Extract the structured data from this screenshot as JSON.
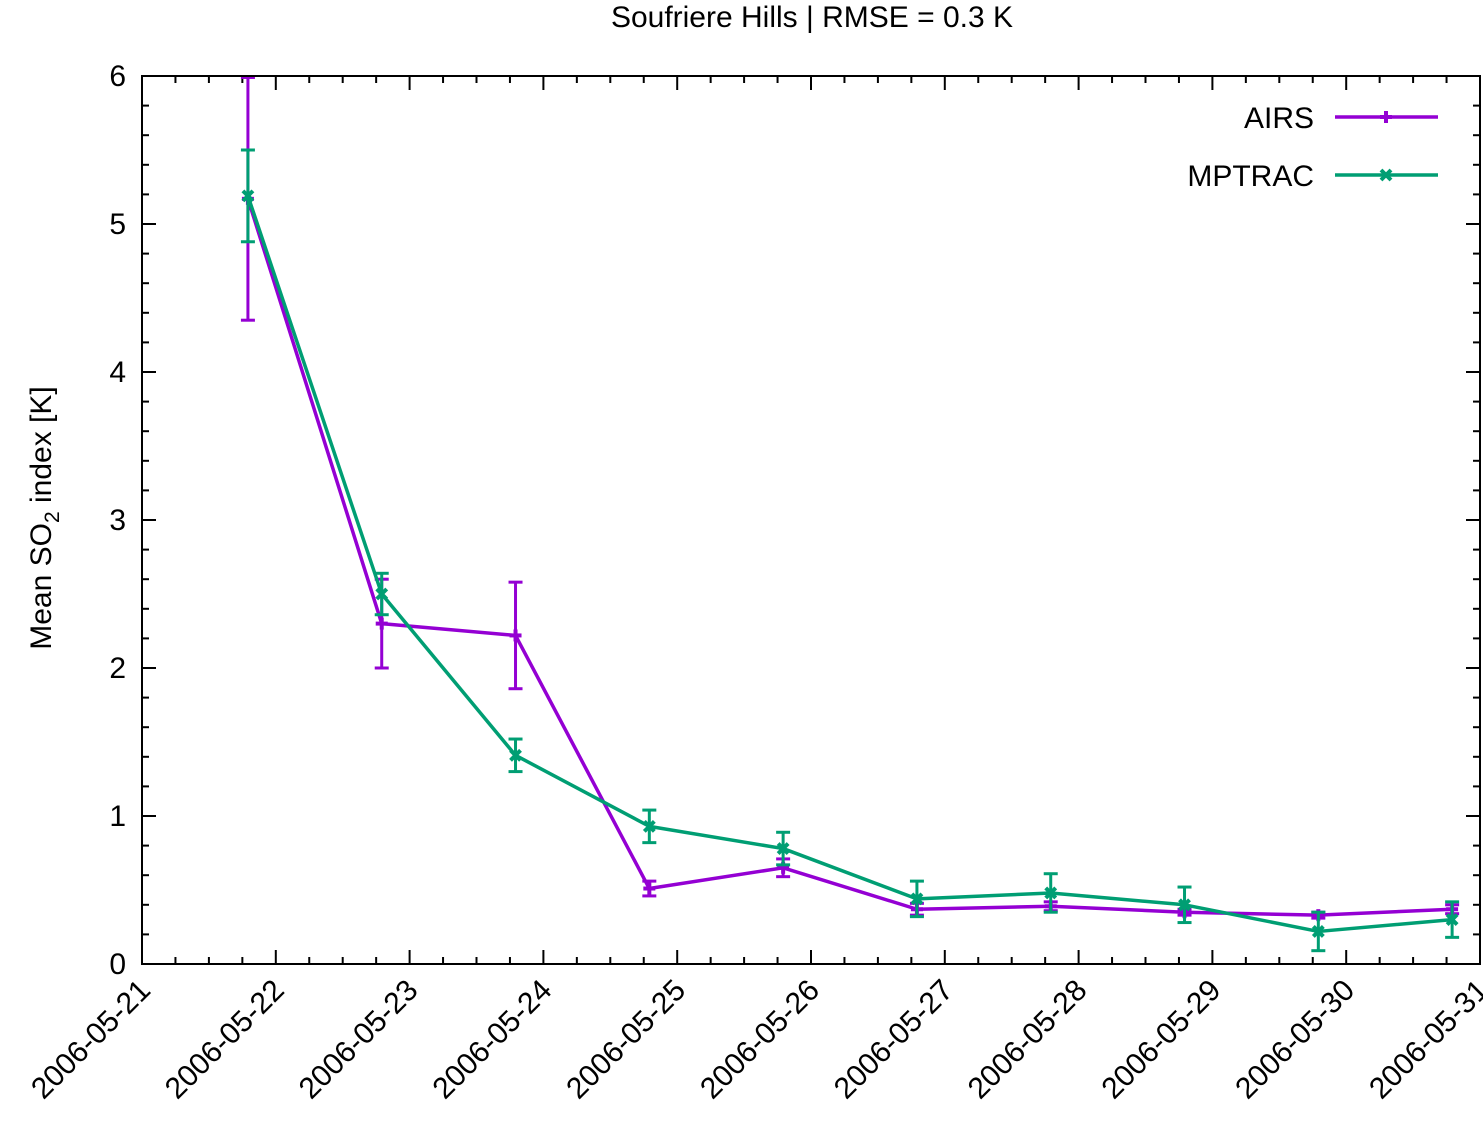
{
  "chart_data": {
    "type": "line",
    "title": "Soufriere Hills | RMSE = 0.3 K",
    "ylabel": {
      "pre": "Mean SO",
      "sub": "2",
      "post": " index [K]"
    },
    "xlabel": "",
    "x_ticks": [
      "2006-05-21",
      "2006-05-22",
      "2006-05-23",
      "2006-05-24",
      "2006-05-25",
      "2006-05-26",
      "2006-05-27",
      "2006-05-28",
      "2006-05-29",
      "2006-05-30",
      "2006-05-31"
    ],
    "xlim": [
      "2006-05-21 00:00",
      "2006-05-31 00:00"
    ],
    "ylim": [
      0,
      6
    ],
    "y_ticks": [
      "0",
      "1",
      "2",
      "3",
      "4",
      "5",
      "6"
    ],
    "grid": false,
    "legend_position": "top-right",
    "x": [
      "2006-05-21 19:00",
      "2006-05-22 19:00",
      "2006-05-23 19:00",
      "2006-05-24 19:00",
      "2006-05-25 19:00",
      "2006-05-26 19:00",
      "2006-05-27 19:00",
      "2006-05-28 19:00",
      "2006-05-29 19:00",
      "2006-05-30 19:00"
    ],
    "series": [
      {
        "name": "AIRS",
        "color": "#9400d3",
        "marker": "plus",
        "values": [
          5.17,
          2.3,
          2.22,
          0.51,
          0.65,
          0.37,
          0.39,
          0.35,
          0.33,
          0.37
        ],
        "errors": [
          0.82,
          0.3,
          0.36,
          0.05,
          0.06,
          0.04,
          0.03,
          0.02,
          0.02,
          0.03
        ]
      },
      {
        "name": "MPTRAC",
        "color": "#009e73",
        "marker": "cross",
        "values": [
          5.19,
          2.5,
          1.41,
          0.93,
          0.78,
          0.44,
          0.48,
          0.4,
          0.22,
          0.3
        ],
        "errors": [
          0.31,
          0.14,
          0.11,
          0.11,
          0.11,
          0.12,
          0.13,
          0.12,
          0.13,
          0.12
        ]
      }
    ]
  }
}
